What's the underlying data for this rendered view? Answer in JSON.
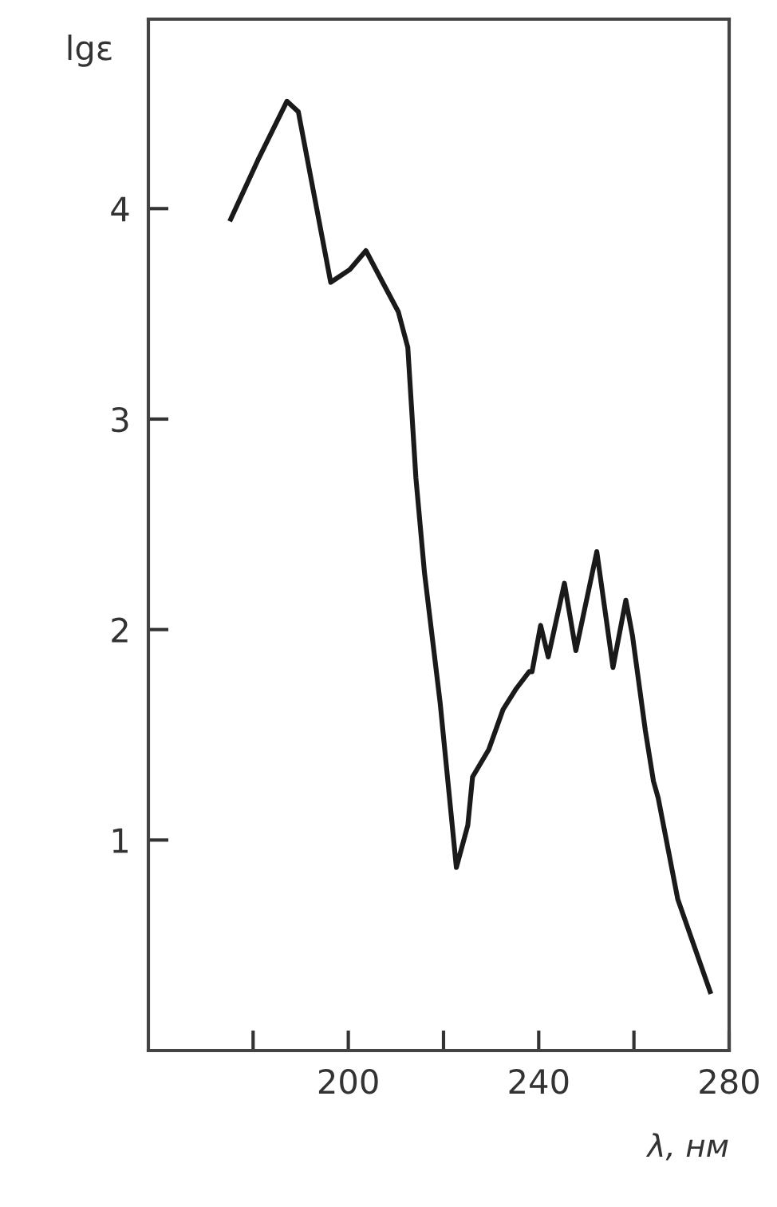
{
  "chart_data": {
    "type": "line",
    "xlabel": "λ, нм",
    "ylabel": "lgε",
    "x": [
      175.3,
      181,
      187.1,
      189.5,
      196.3,
      200.3,
      203.7,
      205.8,
      210.5,
      212.5,
      214.2,
      216.0,
      219.3,
      222.7,
      225.1,
      226.1,
      229.5,
      232.5,
      235.3,
      238.0,
      238.6,
      240.4,
      242.0,
      245.4,
      247.8,
      252.2,
      255.6,
      258.3,
      259.7,
      262.4,
      264.1,
      265.1,
      269.2,
      276.0
    ],
    "series": [
      {
        "color": "#1a1a1a",
        "values": [
          3.95,
          4.23,
          4.51,
          4.46,
          3.65,
          3.71,
          3.8,
          3.71,
          3.51,
          3.34,
          2.72,
          2.27,
          1.65,
          0.87,
          1.07,
          1.3,
          1.43,
          1.62,
          1.72,
          1.8,
          1.8,
          2.02,
          1.87,
          2.22,
          1.9,
          2.37,
          1.82,
          2.14,
          1.97,
          1.52,
          1.28,
          1.2,
          0.72,
          0.28
        ]
      }
    ],
    "xlim": [
      158,
      280
    ],
    "ylim": [
      0,
      4.9
    ],
    "xticks": [
      {
        "value": 180,
        "label": null
      },
      200,
      {
        "value": 220,
        "label": null
      },
      240,
      {
        "value": 260,
        "label": null
      },
      280
    ],
    "yticks": [
      1,
      2,
      3,
      4
    ],
    "grid": false,
    "legend": false,
    "marker": "none",
    "line_style": "solid"
  }
}
